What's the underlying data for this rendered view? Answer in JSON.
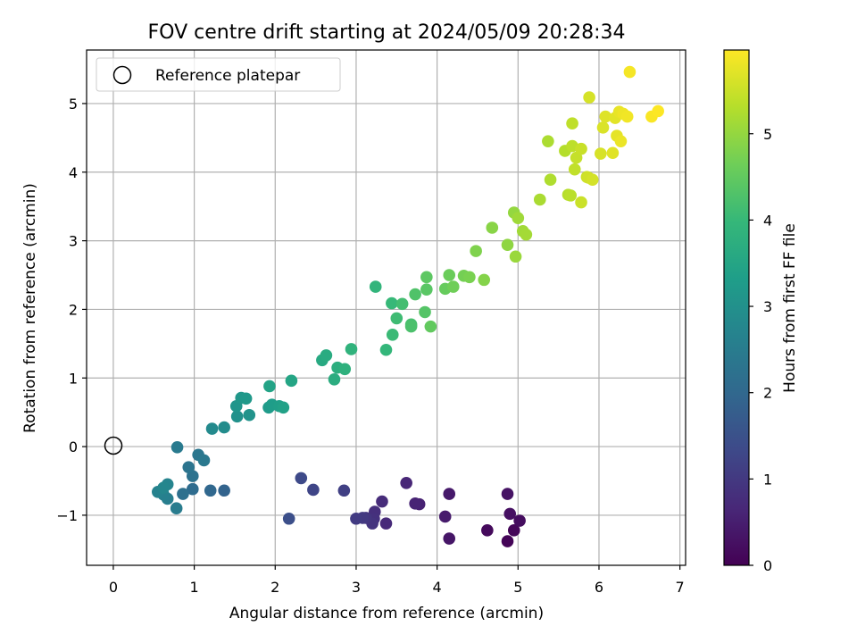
{
  "chart_data": {
    "type": "scatter",
    "title": "FOV centre drift starting at 2024/05/09 20:28:34",
    "xlabel": "Angular distance from reference (arcmin)",
    "ylabel": "Rotation from reference (arcmin)",
    "xlim": [
      -0.33,
      7.07
    ],
    "ylim": [
      -1.73,
      5.78
    ],
    "xticks": [
      0,
      1,
      2,
      3,
      4,
      5,
      6,
      7
    ],
    "yticks": [
      -1,
      0,
      1,
      2,
      3,
      4,
      5
    ],
    "grid": true,
    "legend": {
      "placement": "upper-left",
      "entries": [
        {
          "label": "Reference platepar",
          "marker": "open-circle"
        }
      ]
    },
    "reference_point": {
      "x": 0,
      "y": 0
    },
    "colorbar": {
      "label": "Hours from first FF file",
      "range": [
        0,
        5.97
      ],
      "ticks": [
        0,
        1,
        2,
        3,
        4,
        5
      ],
      "colormap": "viridis"
    },
    "colormap_stops": [
      "#440154",
      "#482878",
      "#3e4989",
      "#31688e",
      "#26828e",
      "#1f9e89",
      "#35b779",
      "#6ece58",
      "#b5de2b",
      "#fde725"
    ],
    "points": [
      {
        "x": 4.87,
        "y": -1.38,
        "c": 0.05
      },
      {
        "x": 4.95,
        "y": -1.22,
        "c": 0.1
      },
      {
        "x": 4.62,
        "y": -1.22,
        "c": 0.15
      },
      {
        "x": 5.02,
        "y": -1.08,
        "c": 0.2
      },
      {
        "x": 4.9,
        "y": -0.98,
        "c": 0.25
      },
      {
        "x": 4.87,
        "y": -0.69,
        "c": 0.3
      },
      {
        "x": 4.15,
        "y": -1.34,
        "c": 0.35
      },
      {
        "x": 4.15,
        "y": -0.69,
        "c": 0.4
      },
      {
        "x": 4.1,
        "y": -1.02,
        "c": 0.45
      },
      {
        "x": 3.78,
        "y": -0.84,
        "c": 0.55
      },
      {
        "x": 3.73,
        "y": -0.83,
        "c": 0.6
      },
      {
        "x": 3.62,
        "y": -0.53,
        "c": 0.65
      },
      {
        "x": 3.37,
        "y": -1.12,
        "c": 0.7
      },
      {
        "x": 3.32,
        "y": -0.8,
        "c": 0.75
      },
      {
        "x": 3.23,
        "y": -0.95,
        "c": 0.8
      },
      {
        "x": 3.22,
        "y": -1.05,
        "c": 0.85
      },
      {
        "x": 3.2,
        "y": -1.12,
        "c": 0.9
      },
      {
        "x": 3.12,
        "y": -1.04,
        "c": 0.95
      },
      {
        "x": 3.08,
        "y": -1.04,
        "c": 1.0
      },
      {
        "x": 3.0,
        "y": -1.05,
        "c": 1.05
      },
      {
        "x": 2.85,
        "y": -0.64,
        "c": 1.15
      },
      {
        "x": 2.47,
        "y": -0.63,
        "c": 1.25
      },
      {
        "x": 2.32,
        "y": -0.46,
        "c": 1.35
      },
      {
        "x": 2.17,
        "y": -1.05,
        "c": 1.45
      },
      {
        "x": 1.37,
        "y": -0.64,
        "c": 1.9
      },
      {
        "x": 1.2,
        "y": -0.64,
        "c": 2.0
      },
      {
        "x": 0.98,
        "y": -0.62,
        "c": 2.1
      },
      {
        "x": 0.86,
        "y": -0.69,
        "c": 2.2
      },
      {
        "x": 0.98,
        "y": -0.43,
        "c": 2.25
      },
      {
        "x": 0.93,
        "y": -0.3,
        "c": 2.3
      },
      {
        "x": 1.05,
        "y": -0.12,
        "c": 2.35
      },
      {
        "x": 1.12,
        "y": -0.2,
        "c": 2.4
      },
      {
        "x": 0.79,
        "y": -0.01,
        "c": 2.45
      },
      {
        "x": 0.78,
        "y": -0.9,
        "c": 2.5
      },
      {
        "x": 0.67,
        "y": -0.76,
        "c": 2.55
      },
      {
        "x": 0.62,
        "y": -0.7,
        "c": 2.6
      },
      {
        "x": 0.55,
        "y": -0.66,
        "c": 2.65
      },
      {
        "x": 0.67,
        "y": -0.55,
        "c": 2.7
      },
      {
        "x": 0.62,
        "y": -0.6,
        "c": 2.75
      },
      {
        "x": 1.22,
        "y": 0.26,
        "c": 2.85
      },
      {
        "x": 1.37,
        "y": 0.28,
        "c": 2.9
      },
      {
        "x": 1.53,
        "y": 0.44,
        "c": 3.0
      },
      {
        "x": 1.68,
        "y": 0.46,
        "c": 3.05
      },
      {
        "x": 1.52,
        "y": 0.59,
        "c": 3.1
      },
      {
        "x": 1.58,
        "y": 0.71,
        "c": 3.15
      },
      {
        "x": 1.64,
        "y": 0.7,
        "c": 3.2
      },
      {
        "x": 1.92,
        "y": 0.57,
        "c": 3.25
      },
      {
        "x": 1.96,
        "y": 0.61,
        "c": 3.3
      },
      {
        "x": 2.05,
        "y": 0.59,
        "c": 3.35
      },
      {
        "x": 2.1,
        "y": 0.57,
        "c": 3.4
      },
      {
        "x": 1.93,
        "y": 0.88,
        "c": 3.45
      },
      {
        "x": 2.2,
        "y": 0.96,
        "c": 3.5
      },
      {
        "x": 2.58,
        "y": 1.26,
        "c": 3.6
      },
      {
        "x": 2.63,
        "y": 1.33,
        "c": 3.65
      },
      {
        "x": 2.73,
        "y": 0.98,
        "c": 3.7
      },
      {
        "x": 2.77,
        "y": 1.15,
        "c": 3.75
      },
      {
        "x": 2.86,
        "y": 1.13,
        "c": 3.8
      },
      {
        "x": 2.94,
        "y": 1.42,
        "c": 3.85
      },
      {
        "x": 3.24,
        "y": 2.33,
        "c": 3.9
      },
      {
        "x": 3.37,
        "y": 1.41,
        "c": 3.95
      },
      {
        "x": 3.44,
        "y": 2.09,
        "c": 4.0
      },
      {
        "x": 3.45,
        "y": 1.63,
        "c": 4.05
      },
      {
        "x": 3.5,
        "y": 1.87,
        "c": 4.1
      },
      {
        "x": 3.57,
        "y": 2.08,
        "c": 4.15
      },
      {
        "x": 3.68,
        "y": 1.78,
        "c": 4.2
      },
      {
        "x": 3.68,
        "y": 1.75,
        "c": 4.25
      },
      {
        "x": 3.73,
        "y": 2.22,
        "c": 4.3
      },
      {
        "x": 3.85,
        "y": 1.96,
        "c": 4.35
      },
      {
        "x": 3.87,
        "y": 2.29,
        "c": 4.4
      },
      {
        "x": 3.87,
        "y": 2.47,
        "c": 4.45
      },
      {
        "x": 3.92,
        "y": 1.75,
        "c": 4.5
      },
      {
        "x": 4.1,
        "y": 2.3,
        "c": 4.55
      },
      {
        "x": 4.15,
        "y": 2.5,
        "c": 4.6
      },
      {
        "x": 4.2,
        "y": 2.33,
        "c": 4.65
      },
      {
        "x": 4.33,
        "y": 2.49,
        "c": 4.7
      },
      {
        "x": 4.4,
        "y": 2.47,
        "c": 4.75
      },
      {
        "x": 4.48,
        "y": 2.85,
        "c": 4.8
      },
      {
        "x": 4.58,
        "y": 2.43,
        "c": 4.85
      },
      {
        "x": 4.68,
        "y": 3.19,
        "c": 4.9
      },
      {
        "x": 4.87,
        "y": 2.94,
        "c": 4.95
      },
      {
        "x": 4.95,
        "y": 3.41,
        "c": 5.0
      },
      {
        "x": 4.97,
        "y": 2.77,
        "c": 5.05
      },
      {
        "x": 5.0,
        "y": 3.33,
        "c": 5.1
      },
      {
        "x": 5.06,
        "y": 3.14,
        "c": 5.12
      },
      {
        "x": 5.1,
        "y": 3.09,
        "c": 5.15
      },
      {
        "x": 5.27,
        "y": 3.6,
        "c": 5.2
      },
      {
        "x": 5.37,
        "y": 4.45,
        "c": 5.22
      },
      {
        "x": 5.4,
        "y": 3.89,
        "c": 5.25
      },
      {
        "x": 5.58,
        "y": 4.31,
        "c": 5.3
      },
      {
        "x": 5.62,
        "y": 3.67,
        "c": 5.32
      },
      {
        "x": 5.65,
        "y": 3.66,
        "c": 5.35
      },
      {
        "x": 5.67,
        "y": 4.38,
        "c": 5.38
      },
      {
        "x": 5.67,
        "y": 4.71,
        "c": 5.4
      },
      {
        "x": 5.7,
        "y": 4.04,
        "c": 5.42
      },
      {
        "x": 5.72,
        "y": 4.21,
        "c": 5.45
      },
      {
        "x": 5.78,
        "y": 4.34,
        "c": 5.48
      },
      {
        "x": 5.78,
        "y": 3.56,
        "c": 5.5
      },
      {
        "x": 5.85,
        "y": 3.93,
        "c": 5.52
      },
      {
        "x": 5.87,
        "y": 3.92,
        "c": 5.55
      },
      {
        "x": 5.92,
        "y": 3.89,
        "c": 5.58
      },
      {
        "x": 5.88,
        "y": 5.09,
        "c": 5.6
      },
      {
        "x": 6.02,
        "y": 4.27,
        "c": 5.62
      },
      {
        "x": 6.05,
        "y": 4.65,
        "c": 5.65
      },
      {
        "x": 6.08,
        "y": 4.81,
        "c": 5.68
      },
      {
        "x": 6.17,
        "y": 4.28,
        "c": 5.7
      },
      {
        "x": 6.2,
        "y": 4.79,
        "c": 5.72
      },
      {
        "x": 6.22,
        "y": 4.53,
        "c": 5.75
      },
      {
        "x": 6.25,
        "y": 4.88,
        "c": 5.78
      },
      {
        "x": 6.27,
        "y": 4.45,
        "c": 5.8
      },
      {
        "x": 6.3,
        "y": 4.85,
        "c": 5.83
      },
      {
        "x": 6.35,
        "y": 4.81,
        "c": 5.86
      },
      {
        "x": 6.38,
        "y": 5.46,
        "c": 5.9
      },
      {
        "x": 6.65,
        "y": 4.81,
        "c": 5.93
      },
      {
        "x": 6.73,
        "y": 4.89,
        "c": 5.96
      }
    ]
  }
}
